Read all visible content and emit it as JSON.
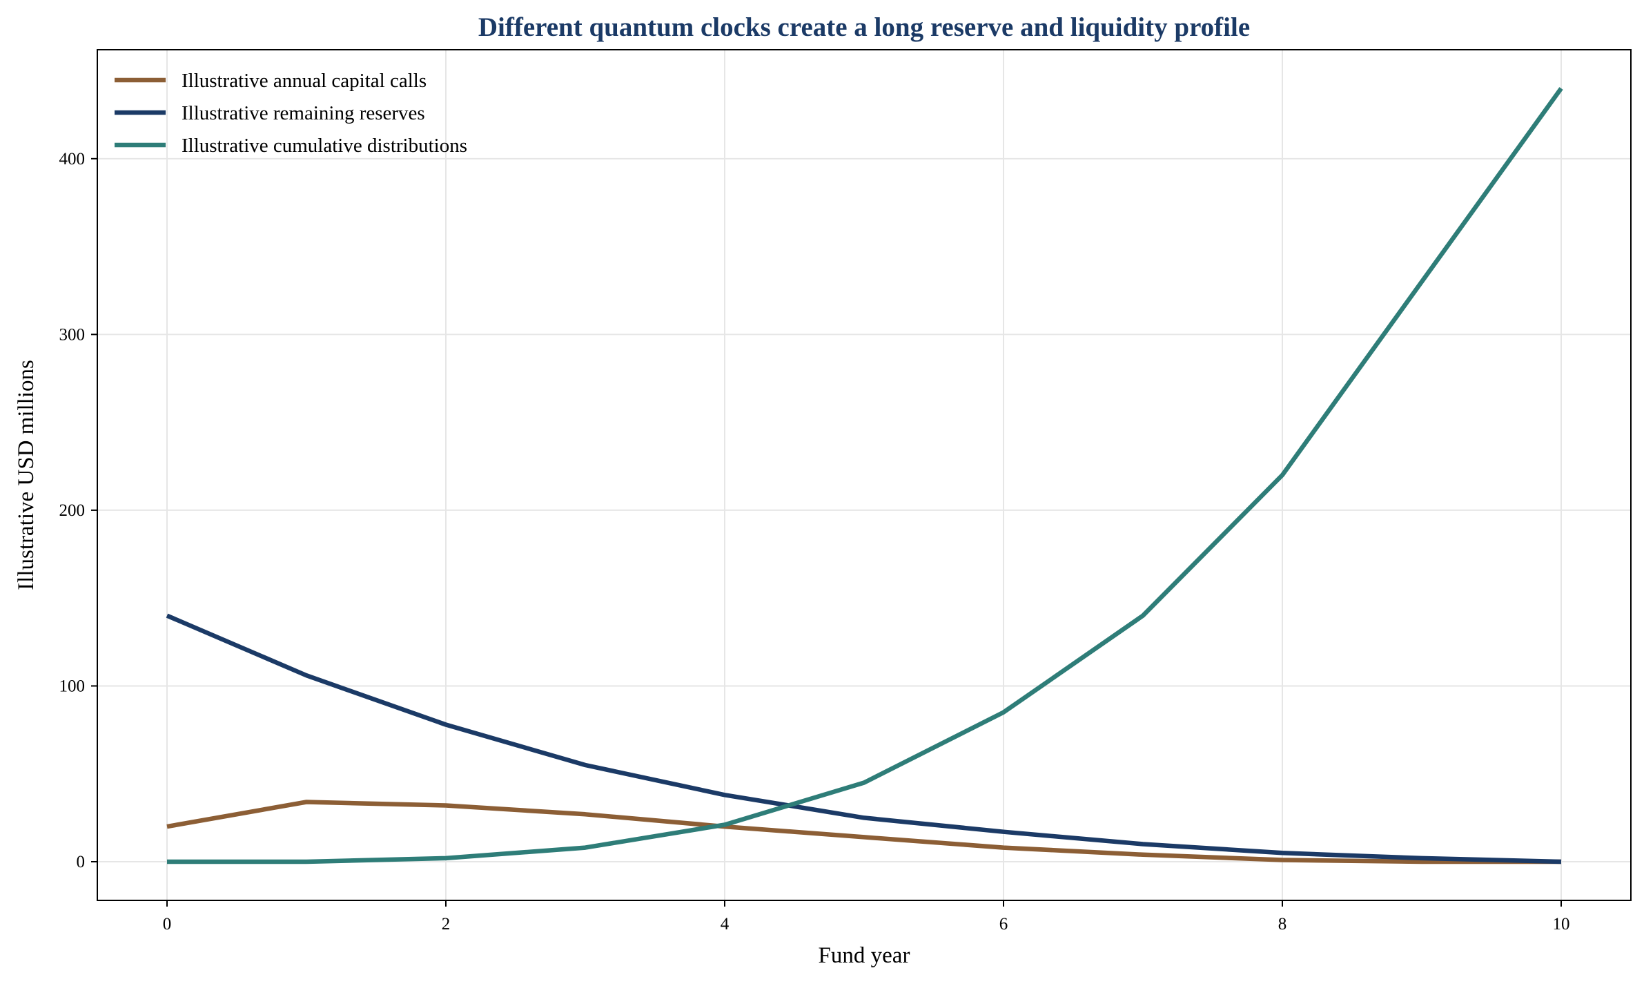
{
  "chart_data": {
    "type": "line",
    "title": "Different quantum clocks create a long reserve and liquidity profile",
    "xlabel": "Fund year",
    "ylabel": "Illustrative USD millions",
    "x": [
      0,
      1,
      2,
      3,
      4,
      5,
      6,
      7,
      8,
      9,
      10
    ],
    "xlim": [
      -0.5,
      10.5
    ],
    "ylim": [
      -22,
      462
    ],
    "xticks": [
      0,
      2,
      4,
      6,
      8,
      10
    ],
    "yticks": [
      0,
      100,
      200,
      300,
      400
    ],
    "grid": true,
    "legend_position": "top-left",
    "series": [
      {
        "name": "Illustrative annual capital calls",
        "color": "#8c5e35",
        "values": [
          20,
          34,
          32,
          27,
          20,
          14,
          8,
          4,
          1,
          0,
          0
        ]
      },
      {
        "name": "Illustrative remaining reserves",
        "color": "#1b3a66",
        "values": [
          140,
          106,
          78,
          55,
          38,
          25,
          17,
          10,
          5,
          2,
          0
        ]
      },
      {
        "name": "Illustrative cumulative distributions",
        "color": "#2e7d78",
        "values": [
          0,
          0,
          2,
          8,
          21,
          45,
          85,
          140,
          220,
          330,
          440
        ]
      }
    ],
    "title_color": "#1b3a66"
  }
}
